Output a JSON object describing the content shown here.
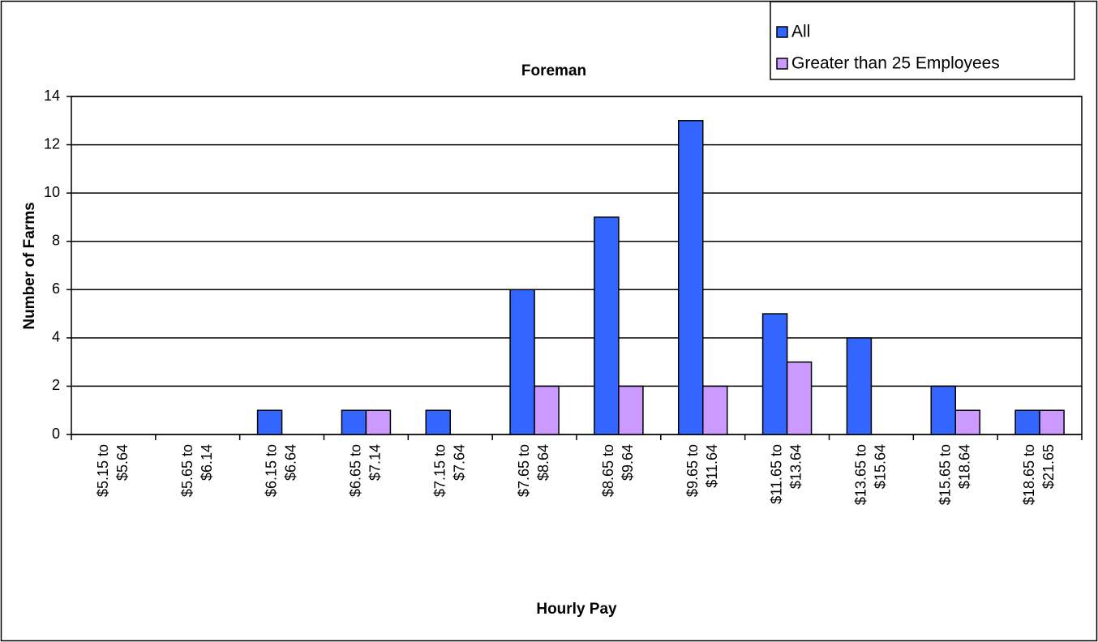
{
  "chart_data": {
    "type": "bar",
    "title": "Foreman",
    "x_label": "Hourly Pay",
    "y_label": "Number of Farms",
    "categories": [
      "$5.15 to\n$5.64",
      "$5.65 to\n$6.14",
      "$6.15 to\n$6.64",
      "$6.65 to\n$7.14",
      "$7.15 to\n$7.64",
      "$7.65 to\n$8.64",
      "$8.65 to\n$9.64",
      "$9.65 to\n$11.64",
      "$11.65 to\n$13.64",
      "$13.65 to\n$15.64",
      "$15.65 to\n$18.64",
      "$18.65 to\n$21.65"
    ],
    "series": [
      {
        "name": "All",
        "color": "#3366ff",
        "values": [
          0,
          0,
          1,
          1,
          1,
          6,
          9,
          13,
          5,
          4,
          2,
          1
        ]
      },
      {
        "name": "Greater than 25 Employees",
        "color": "#cc99ff",
        "values": [
          0,
          0,
          0,
          1,
          0,
          2,
          2,
          2,
          3,
          0,
          1,
          1
        ]
      }
    ],
    "ylim": [
      0,
      14
    ],
    "yticks": [
      0,
      2,
      4,
      6,
      8,
      10,
      12,
      14
    ],
    "grid": true,
    "legend": "top-right"
  }
}
